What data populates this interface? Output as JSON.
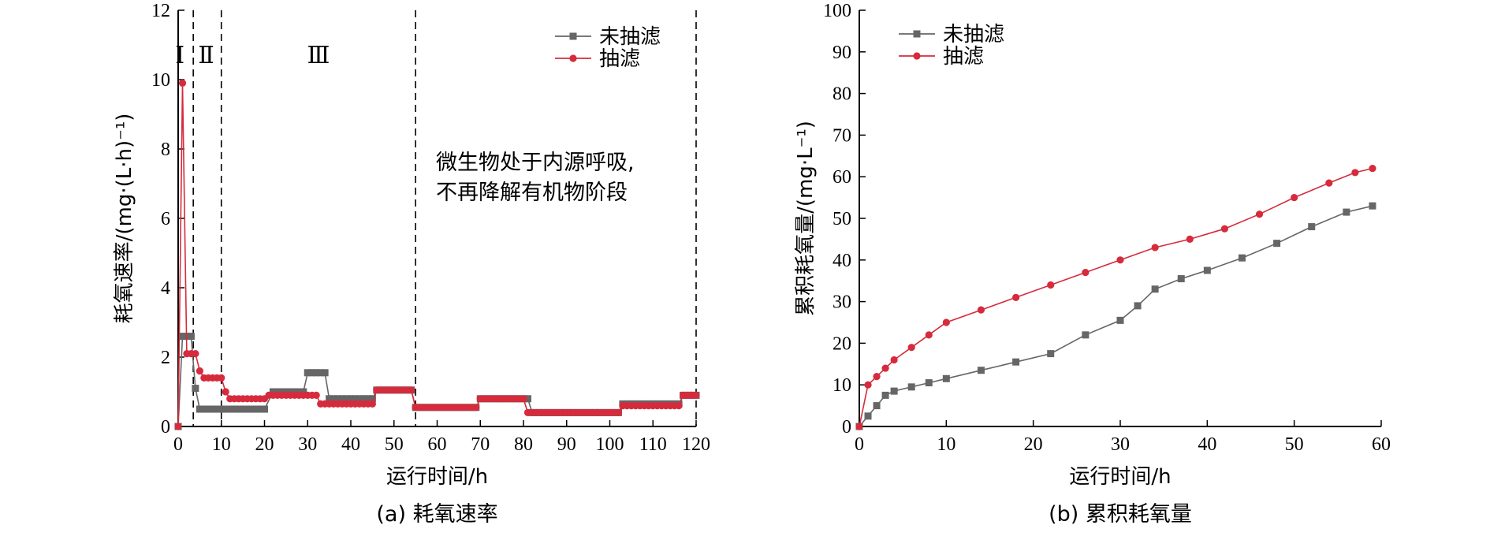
{
  "chart_data": [
    {
      "type": "line",
      "caption": "(a) 耗氧速率",
      "xlabel": "运行时间/h",
      "ylabel": "耗氧速率/(mg·(L·h)⁻¹)",
      "xlim": [
        0,
        120
      ],
      "ylim": [
        0,
        12
      ],
      "xticks": [
        0,
        10,
        20,
        30,
        40,
        50,
        60,
        70,
        80,
        90,
        100,
        110,
        120
      ],
      "yticks": [
        0,
        2,
        4,
        6,
        8,
        10,
        12
      ],
      "grid": false,
      "legend_position": "top-right",
      "phase_lines": [
        3.5,
        10,
        55,
        120
      ],
      "phase_labels": [
        "Ⅰ",
        "Ⅱ",
        "Ⅲ"
      ],
      "annotation": [
        "微生物处于内源呼吸,",
        "不再降解有机物阶段"
      ],
      "series": [
        {
          "name": "未抽滤",
          "color": "#666666",
          "marker": "square",
          "segments": [
            {
              "x_start": 0,
              "x_end": 0,
              "y": 0
            },
            {
              "x_start": 1,
              "x_end": 3,
              "y": 2.6
            },
            {
              "x_start": 4,
              "x_end": 4,
              "y": 1.1
            },
            {
              "x_start": 5,
              "x_end": 20,
              "y": 0.5
            },
            {
              "x_start": 22,
              "x_end": 29,
              "y": 1.0
            },
            {
              "x_start": 30,
              "x_end": 34,
              "y": 1.55
            },
            {
              "x_start": 35,
              "x_end": 45,
              "y": 0.8
            },
            {
              "x_start": 46,
              "x_end": 54,
              "y": 1.05
            },
            {
              "x_start": 55,
              "x_end": 69,
              "y": 0.55
            },
            {
              "x_start": 70,
              "x_end": 81,
              "y": 0.8
            },
            {
              "x_start": 82,
              "x_end": 102,
              "y": 0.4
            },
            {
              "x_start": 103,
              "x_end": 116,
              "y": 0.65
            },
            {
              "x_start": 117,
              "x_end": 120,
              "y": 0.9
            }
          ]
        },
        {
          "name": "抽滤",
          "color": "#d62b3c",
          "marker": "circle",
          "segments": [
            {
              "x_start": 0,
              "x_end": 0,
              "y": 0
            },
            {
              "x_start": 1,
              "x_end": 1,
              "y": 9.9
            },
            {
              "x_start": 2,
              "x_end": 4,
              "y": 2.1
            },
            {
              "x_start": 5,
              "x_end": 5,
              "y": 1.6
            },
            {
              "x_start": 6,
              "x_end": 10,
              "y": 1.4
            },
            {
              "x_start": 11,
              "x_end": 11,
              "y": 1.0
            },
            {
              "x_start": 12,
              "x_end": 20,
              "y": 0.8
            },
            {
              "x_start": 21,
              "x_end": 32,
              "y": 0.9
            },
            {
              "x_start": 33,
              "x_end": 45,
              "y": 0.65
            },
            {
              "x_start": 46,
              "x_end": 54,
              "y": 1.05
            },
            {
              "x_start": 55,
              "x_end": 69,
              "y": 0.55
            },
            {
              "x_start": 70,
              "x_end": 80,
              "y": 0.8
            },
            {
              "x_start": 81,
              "x_end": 102,
              "y": 0.4
            },
            {
              "x_start": 103,
              "x_end": 116,
              "y": 0.6
            },
            {
              "x_start": 117,
              "x_end": 120,
              "y": 0.9
            }
          ]
        }
      ]
    },
    {
      "type": "line",
      "caption": "(b) 累积耗氧量",
      "xlabel": "运行时间/h",
      "ylabel": "累积耗氧量/(mg·L⁻¹)",
      "xlim": [
        0,
        60
      ],
      "ylim": [
        0,
        100
      ],
      "xticks": [
        0,
        10,
        20,
        30,
        40,
        50,
        60
      ],
      "yticks": [
        0,
        10,
        20,
        30,
        40,
        50,
        60,
        70,
        80,
        90,
        100
      ],
      "grid": false,
      "legend_position": "top-left",
      "series": [
        {
          "name": "未抽滤",
          "color": "#666666",
          "marker": "square",
          "points": [
            [
              0,
              0
            ],
            [
              1,
              2.5
            ],
            [
              2,
              5
            ],
            [
              3,
              7.5
            ],
            [
              4,
              8.5
            ],
            [
              6,
              9.5
            ],
            [
              8,
              10.5
            ],
            [
              10,
              11.5
            ],
            [
              14,
              13.5
            ],
            [
              18,
              15.5
            ],
            [
              22,
              17.5
            ],
            [
              26,
              22
            ],
            [
              30,
              25.5
            ],
            [
              32,
              29
            ],
            [
              34,
              33
            ],
            [
              37,
              35.5
            ],
            [
              40,
              37.5
            ],
            [
              44,
              40.5
            ],
            [
              48,
              44
            ],
            [
              52,
              48
            ],
            [
              56,
              51.5
            ],
            [
              59,
              53
            ]
          ]
        },
        {
          "name": "抽滤",
          "color": "#d62b3c",
          "marker": "circle",
          "points": [
            [
              0,
              0
            ],
            [
              1,
              10
            ],
            [
              2,
              12
            ],
            [
              3,
              14
            ],
            [
              4,
              16
            ],
            [
              6,
              19
            ],
            [
              8,
              22
            ],
            [
              10,
              25
            ],
            [
              14,
              28
            ],
            [
              18,
              31
            ],
            [
              22,
              34
            ],
            [
              26,
              37
            ],
            [
              30,
              40
            ],
            [
              34,
              43
            ],
            [
              38,
              45
            ],
            [
              42,
              47.5
            ],
            [
              46,
              51
            ],
            [
              50,
              55
            ],
            [
              54,
              58.5
            ],
            [
              57,
              61
            ],
            [
              59,
              62
            ]
          ]
        }
      ]
    }
  ]
}
